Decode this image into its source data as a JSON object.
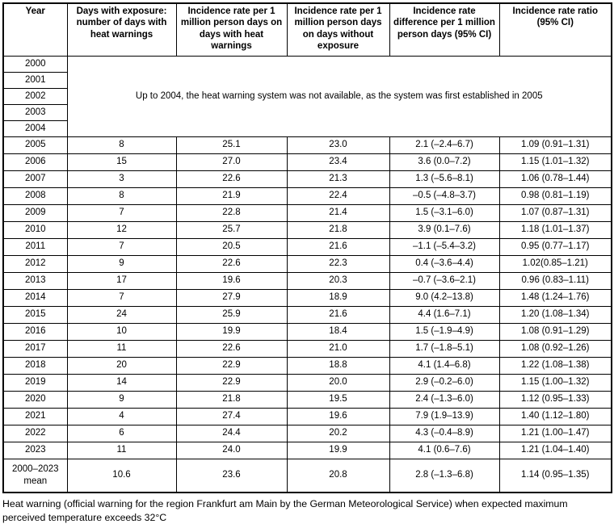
{
  "table": {
    "headers": [
      "Year",
      "Days with exposure: number of days with heat warnings",
      "Incidence rate per 1 million person days on days with heat warnings",
      "Incidence rate per 1 million person days on days without exposure",
      "Incidence rate difference per 1 million person days (95% CI)",
      "Incidence rate ratio (95% CI)"
    ],
    "empty_years": [
      "2000",
      "2001",
      "2002",
      "2003",
      "2004"
    ],
    "merged_note": "Up to 2004, the heat warning system was not available, as the system was first established in 2005",
    "rows": [
      {
        "year": "2005",
        "days": "8",
        "rate_warnings": "25.1",
        "rate_no_exposure": "23.0",
        "difference": "2.1 (–2.4–6.7)",
        "ratio": "1.09 (0.91–1.31)"
      },
      {
        "year": "2006",
        "days": "15",
        "rate_warnings": "27.0",
        "rate_no_exposure": "23.4",
        "difference": "3.6 (0.0–7.2)",
        "ratio": "1.15 (1.01–1.32)"
      },
      {
        "year": "2007",
        "days": "3",
        "rate_warnings": "22.6",
        "rate_no_exposure": "21.3",
        "difference": "1.3 (–5.6–8.1)",
        "ratio": "1.06 (0.78–1.44)"
      },
      {
        "year": "2008",
        "days": "8",
        "rate_warnings": "21.9",
        "rate_no_exposure": "22.4",
        "difference": "–0.5 (–4.8–3.7)",
        "ratio": "0.98 (0.81–1.19)"
      },
      {
        "year": "2009",
        "days": "7",
        "rate_warnings": "22.8",
        "rate_no_exposure": "21.4",
        "difference": "1.5 (–3.1–6.0)",
        "ratio": "1.07 (0.87–1.31)"
      },
      {
        "year": "2010",
        "days": "12",
        "rate_warnings": "25.7",
        "rate_no_exposure": "21.8",
        "difference": "3.9 (0.1–7.6)",
        "ratio": "1.18 (1.01–1.37)"
      },
      {
        "year": "2011",
        "days": "7",
        "rate_warnings": "20.5",
        "rate_no_exposure": "21.6",
        "difference": "–1.1 (–5.4–3.2)",
        "ratio": "0.95 (0.77–1.17)"
      },
      {
        "year": "2012",
        "days": "9",
        "rate_warnings": "22.6",
        "rate_no_exposure": "22.3",
        "difference": "0.4 (–3.6–4.4)",
        "ratio": "1.02(0.85–1.21)"
      },
      {
        "year": "2013",
        "days": "17",
        "rate_warnings": "19.6",
        "rate_no_exposure": "20.3",
        "difference": "–0.7 (–3.6–2.1)",
        "ratio": "0.96 (0.83–1.11)"
      },
      {
        "year": "2014",
        "days": "7",
        "rate_warnings": "27.9",
        "rate_no_exposure": "18.9",
        "difference": "9.0 (4.2–13.8)",
        "ratio": "1.48 (1.24–1.76)"
      },
      {
        "year": "2015",
        "days": "24",
        "rate_warnings": "25.9",
        "rate_no_exposure": "21.6",
        "difference": "4.4 (1.6–7.1)",
        "ratio": "1.20 (1.08–1.34)"
      },
      {
        "year": "2016",
        "days": "10",
        "rate_warnings": "19.9",
        "rate_no_exposure": "18.4",
        "difference": "1.5 (–1.9–4.9)",
        "ratio": "1.08 (0.91–1.29)"
      },
      {
        "year": "2017",
        "days": "11",
        "rate_warnings": "22.6",
        "rate_no_exposure": "21.0",
        "difference": "1.7 (–1.8–5.1)",
        "ratio": "1.08 (0.92–1.26)"
      },
      {
        "year": "2018",
        "days": "20",
        "rate_warnings": "22.9",
        "rate_no_exposure": "18.8",
        "difference": "4.1 (1.4–6.8)",
        "ratio": "1.22 (1.08–1.38)"
      },
      {
        "year": "2019",
        "days": "14",
        "rate_warnings": "22.9",
        "rate_no_exposure": "20.0",
        "difference": "2.9 (–0.2–6.0)",
        "ratio": "1.15 (1.00–1.32)"
      },
      {
        "year": "2020",
        "days": "9",
        "rate_warnings": "21.8",
        "rate_no_exposure": "19.5",
        "difference": "2.4 (–1.3–6.0)",
        "ratio": "1.12 (0.95–1.33)"
      },
      {
        "year": "2021",
        "days": "4",
        "rate_warnings": "27.4",
        "rate_no_exposure": "19.6",
        "difference": "7.9 (1.9–13.9)",
        "ratio": "1.40 (1.12–1.80)"
      },
      {
        "year": "2022",
        "days": "6",
        "rate_warnings": "24.4",
        "rate_no_exposure": "20.2",
        "difference": "4.3 (–0.4–8.9)",
        "ratio": "1.21 (1.00–1.47)"
      },
      {
        "year": "2023",
        "days": "11",
        "rate_warnings": "24.0",
        "rate_no_exposure": "19.9",
        "difference": "4.1 (0.6–7.6)",
        "ratio": "1.21 (1.04–1.40)"
      },
      {
        "year": "2000–2023 mean",
        "days": "10.6",
        "rate_warnings": "23.6",
        "rate_no_exposure": "20.8",
        "difference": "2.8 (–1.3–6.8)",
        "ratio": "1.14 (0.95–1.35)",
        "is_mean": true
      }
    ]
  },
  "footnote": "Heat warning (official warning for the region Frankfurt am Main by the German Meteorological Service) when expected maximum perceived temperature exceeds 32°C"
}
